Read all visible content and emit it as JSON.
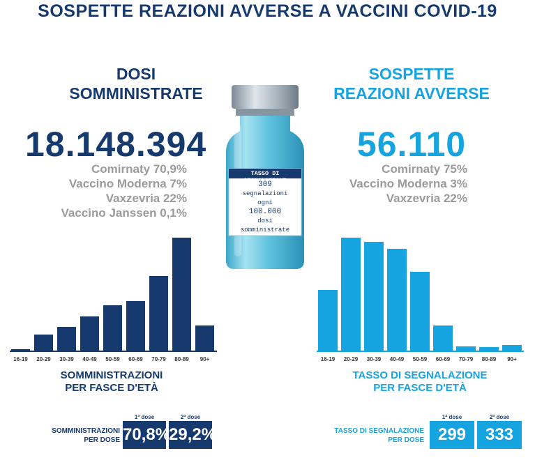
{
  "title": "SOSPETTE REAZIONI AVVERSE A VACCINI COVID-19",
  "left": {
    "header": [
      "DOSI",
      "SOMMINISTRATE"
    ],
    "total": "18.148.394",
    "shares": [
      "Comirnaty 70,9%",
      "Vaccino Moderna 7%",
      "Vaxzevria 22%",
      "Vaccino Janssen 0,1%"
    ],
    "caption": [
      "SOMMINISTRAZIONI",
      "PER FASCE D'ETÀ"
    ],
    "dose_title": [
      "SOMMINISTRAZIONI",
      "PER DOSE"
    ],
    "dose1_label": "1ª dose",
    "dose2_label": "2ª dose",
    "dose1_value": "70,8%",
    "dose2_value": "29,2%",
    "color": "#163a6e"
  },
  "right": {
    "header": [
      "SOSPETTE",
      "REAZIONI AVVERSE"
    ],
    "total": "56.110",
    "shares": [
      "Comirnaty 75%",
      "Vaccino Moderna 3%",
      "Vaxzevria 22%"
    ],
    "caption": [
      "TASSO DI SEGNALAZIONE",
      "PER FASCE D'ETÀ"
    ],
    "dose_title": [
      "TASSO DI SEGNALAZIONE",
      "PER DOSE"
    ],
    "dose1_label": "1ª dose",
    "dose2_label": "2ª dose",
    "dose1_value": "299",
    "dose2_value": "333",
    "color": "#16a4e0"
  },
  "vial": {
    "label_title": "TASSO DI SEGNALAZIONE",
    "label_lines": [
      "309",
      "segnalazioni",
      "ogni",
      "100.000",
      "dosi",
      "somministrate"
    ]
  },
  "chart_data": [
    {
      "type": "bar",
      "categories": [
        "16-19",
        "20-29",
        "30-39",
        "40-49",
        "50-59",
        "60-69",
        "70-79",
        "80-89",
        "90+"
      ],
      "values": [
        1,
        14,
        21,
        30,
        40,
        44,
        66,
        100,
        22
      ],
      "ylim": [
        0,
        100
      ],
      "grid": false
    },
    {
      "type": "bar",
      "categories": [
        "16-19",
        "20-29",
        "30-39",
        "40-49",
        "50-59",
        "60-69",
        "70-79",
        "80-89",
        "90+"
      ],
      "values": [
        54,
        100,
        96,
        90,
        70,
        22,
        4,
        3,
        5
      ],
      "ylim": [
        0,
        100
      ],
      "grid": false
    }
  ]
}
